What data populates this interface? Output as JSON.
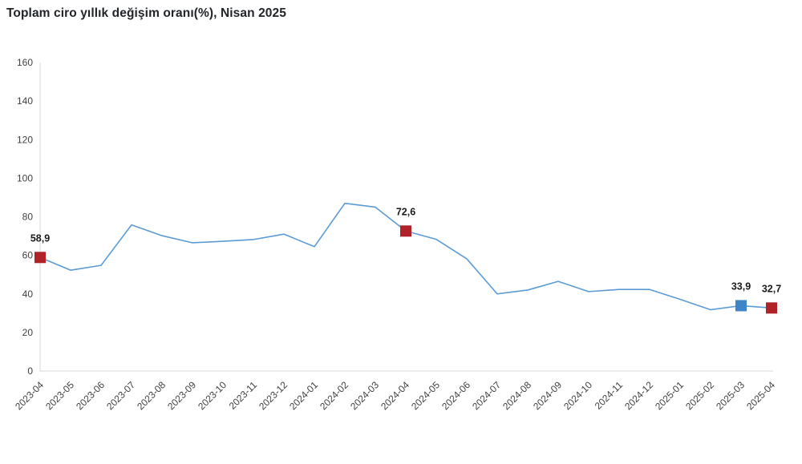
{
  "title": "Toplam ciro yıllık değişim oranı(%), Nisan 2025",
  "chart_data": {
    "type": "line",
    "title": "Toplam ciro yıllık değişim oranı(%), Nisan 2025",
    "xlabel": "",
    "ylabel": "",
    "ylim": [
      0,
      160
    ],
    "y_ticks": [
      0,
      20,
      40,
      60,
      80,
      100,
      120,
      140,
      160
    ],
    "grid": false,
    "legend_position": "none",
    "categories": [
      "2023-04",
      "2023-05",
      "2023-06",
      "2023-07",
      "2023-08",
      "2023-09",
      "2023-10",
      "2023-11",
      "2023-12",
      "2024-01",
      "2024-02",
      "2024-03",
      "2024-04",
      "2024-05",
      "2024-06",
      "2024-07",
      "2024-08",
      "2024-09",
      "2024-10",
      "2024-11",
      "2024-12",
      "2025-01",
      "2025-02",
      "2025-03",
      "2025-04"
    ],
    "series": [
      {
        "name": "Toplam ciro yıllık değişim oranı (%)",
        "values": [
          58.9,
          52.3,
          54.8,
          75.8,
          70.2,
          66.5,
          67.3,
          68.2,
          71.0,
          64.5,
          87.0,
          85.0,
          72.6,
          68.3,
          58.2,
          40.0,
          42.0,
          46.5,
          41.2,
          42.3,
          42.3,
          37.2,
          31.8,
          33.9,
          32.7
        ]
      }
    ],
    "highlighted_points": [
      {
        "category": "2023-04",
        "index": 0,
        "label": "58,9",
        "marker_color": "#b02227"
      },
      {
        "category": "2024-04",
        "index": 12,
        "label": "72,6",
        "marker_color": "#b02227"
      },
      {
        "category": "2025-03",
        "index": 23,
        "label": "33,9",
        "marker_color": "#3d85c6"
      },
      {
        "category": "2025-04",
        "index": 24,
        "label": "32,7",
        "marker_color": "#b02227"
      }
    ],
    "colors": {
      "line": "#5b9bd5",
      "axis_line": "#d9d9d9",
      "tick_label": "#404040",
      "data_label": "#1a1a1a"
    }
  }
}
